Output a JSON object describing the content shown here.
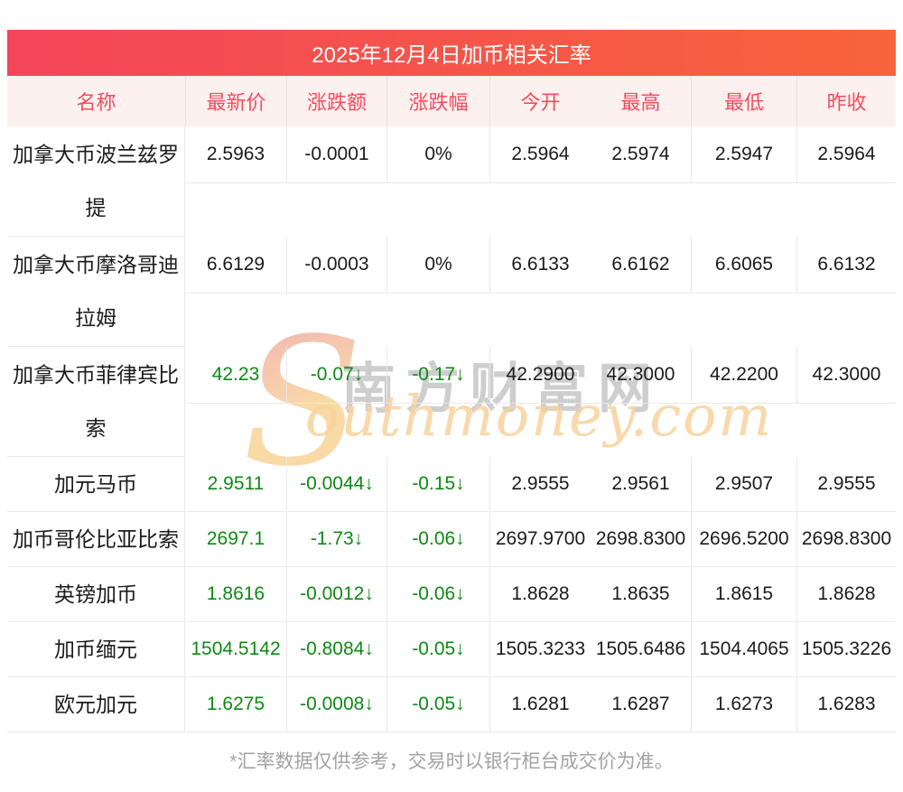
{
  "banner": {
    "title": "2025年12月4日加币相关汇率"
  },
  "columns": [
    "名称",
    "最新价",
    "涨跌额",
    "涨跌幅",
    "今开",
    "最高",
    "最低",
    "昨收"
  ],
  "column_keys": [
    "name",
    "latest",
    "change-amount",
    "change-percent",
    "open",
    "high",
    "low",
    "prev-close"
  ],
  "rows": [
    {
      "name": "加拿大币波兰兹罗提",
      "tall": true,
      "trend": "flat",
      "values": [
        "2.5963",
        "-0.0001",
        "0%",
        "2.5964",
        "2.5974",
        "2.5947",
        "2.5964"
      ]
    },
    {
      "name": "加拿大币摩洛哥迪拉姆",
      "tall": true,
      "trend": "flat",
      "values": [
        "6.6129",
        "-0.0003",
        "0%",
        "6.6133",
        "6.6162",
        "6.6065",
        "6.6132"
      ]
    },
    {
      "name": "加拿大币菲律宾比索",
      "tall": true,
      "trend": "down",
      "values": [
        "42.23",
        "-0.07↓",
        "-0.17↓",
        "42.2900",
        "42.3000",
        "42.2200",
        "42.3000"
      ]
    },
    {
      "name": "加元马币",
      "tall": false,
      "trend": "down",
      "values": [
        "2.9511",
        "-0.0044↓",
        "-0.15↓",
        "2.9555",
        "2.9561",
        "2.9507",
        "2.9555"
      ]
    },
    {
      "name": "加币哥伦比亚比索",
      "tall": false,
      "trend": "down",
      "values": [
        "2697.1",
        "-1.73↓",
        "-0.06↓",
        "2697.9700",
        "2698.8300",
        "2696.5200",
        "2698.8300"
      ]
    },
    {
      "name": "英镑加币",
      "tall": false,
      "trend": "down",
      "values": [
        "1.8616",
        "-0.0012↓",
        "-0.06↓",
        "1.8628",
        "1.8635",
        "1.8615",
        "1.8628"
      ]
    },
    {
      "name": "加币缅元",
      "tall": false,
      "trend": "down",
      "values": [
        "1504.5142",
        "-0.8084↓",
        "-0.05↓",
        "1505.3233",
        "1505.6486",
        "1504.4065",
        "1505.3226"
      ]
    },
    {
      "name": "欧元加元",
      "tall": false,
      "trend": "down",
      "values": [
        "1.6275",
        "-0.0008↓",
        "-0.05↓",
        "1.6281",
        "1.6287",
        "1.6273",
        "1.6283"
      ]
    }
  ],
  "watermark": {
    "initial": "S",
    "cn": "南方财富网",
    "en": "outhmoney.com"
  },
  "footer": {
    "note": "*汇率数据仅供参考，交易时以银行柜台成交价为准。"
  },
  "colors": {
    "banner_from": "#f4455a",
    "banner_to": "#f7643b",
    "header_bg": "#fdf1f0",
    "header_text": "#f44c5e",
    "down_green": "#0d8a14",
    "text_black": "#1b1b1b",
    "border": "#e9e9e9",
    "footer_gray": "#a3a3a3"
  }
}
